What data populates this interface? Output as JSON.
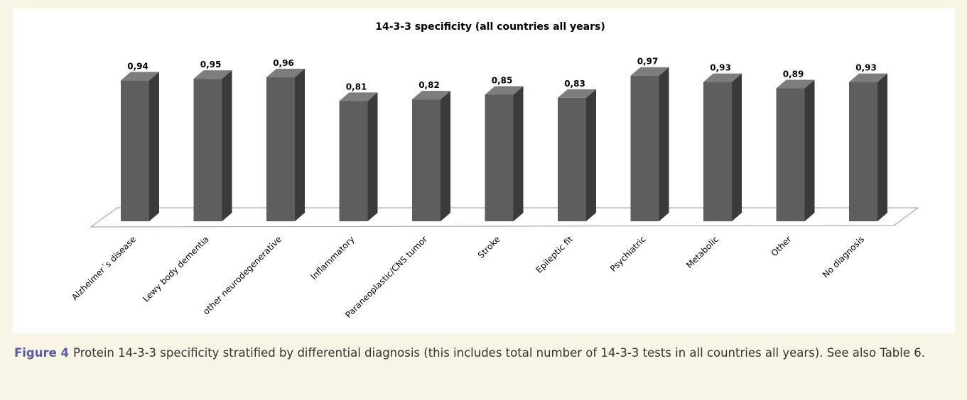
{
  "chart_data": {
    "type": "bar3d",
    "title": "14-3-3 specificity (all countries all years)",
    "categories": [
      "Alzheimer´s disease",
      "Lewy body dementia",
      "other neurodegenerative",
      "Inflammatory",
      "Paraneoplastic/CNS tumor",
      "Stroke",
      "Epileptic fit",
      "Psychiatric",
      "Metabolic",
      "Other",
      "No diagnosis"
    ],
    "values": [
      0.94,
      0.95,
      0.96,
      0.81,
      0.82,
      0.85,
      0.83,
      0.97,
      0.93,
      0.89,
      0.93
    ],
    "value_labels": [
      "0,94",
      "0,95",
      "0,96",
      "0,81",
      "0,82",
      "0,85",
      "0,83",
      "0,97",
      "0,93",
      "0,89",
      "0,93"
    ],
    "color": "#5e5e5e"
  },
  "caption": {
    "label": "Figure 4",
    "text": "Protein 14-3-3 specificity stratified by differential diagnosis (this includes total number of 14-3-3 tests in all countries all years). See also Table 6."
  }
}
